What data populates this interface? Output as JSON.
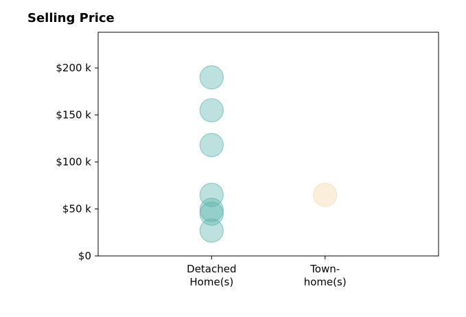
{
  "chart_data": {
    "type": "scatter",
    "title": "Selling Price",
    "xlabel": "",
    "ylabel": "",
    "categories": [
      "Detached\nHome(s)",
      "Town-\nhome(s)"
    ],
    "yticks": [
      0,
      50000,
      100000,
      150000,
      200000
    ],
    "ytick_labels": [
      "$0",
      "$50 k",
      "$100 k",
      "$150 k",
      "$200 k"
    ],
    "ylim": [
      0,
      238000
    ],
    "xlim": [
      -1,
      2
    ],
    "grid": false,
    "series": [
      {
        "category": "Detached\nHome(s)",
        "color": "#5ab4ac",
        "values": [
          190000,
          155000,
          118000,
          65000,
          49000,
          45000,
          27000
        ]
      },
      {
        "category": "Town-\nhome(s)",
        "color": "#f6d8a8",
        "values": [
          65000
        ]
      }
    ]
  }
}
